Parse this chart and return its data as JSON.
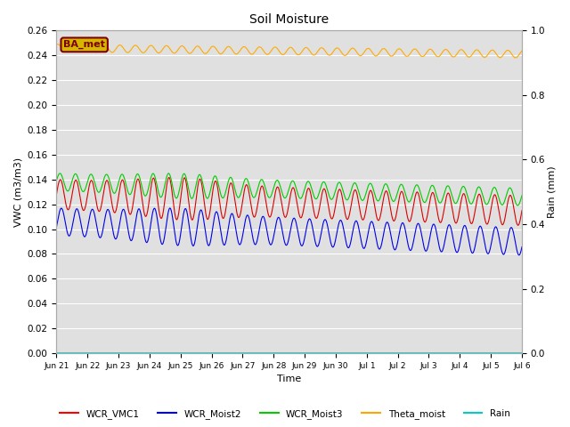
{
  "title": "Soil Moisture",
  "xlabel": "Time",
  "ylabel_left": "VWC (m3/m3)",
  "ylabel_right": "Rain (mm)",
  "ylim_left": [
    0.0,
    0.26
  ],
  "ylim_right": [
    0.0,
    1.0
  ],
  "fig_bg_color": "#ffffff",
  "plot_bg_color": "#e0e0e0",
  "x_tick_labels": [
    "Jun 21",
    "Jun 22",
    "Jun 23",
    "Jun 24",
    "Jun 25",
    "Jun 26",
    "Jun 27",
    "Jun 28",
    "Jun 29",
    "Jun 30",
    "Jul 1",
    "Jul 2",
    "Jul 3",
    "Jul 4",
    "Jul 5",
    "Jul 6"
  ],
  "annotation_text": "BA_met",
  "annotation_color": "#800000",
  "annotation_bg": "#d4b800",
  "legend_entries": [
    "WCR_VMC1",
    "WCR_Moist2",
    "WCR_Moist3",
    "Theta_moist",
    "Rain"
  ],
  "legend_colors": [
    "#ff0000",
    "#0000ff",
    "#00cc00",
    "#ffa500",
    "#00cccc"
  ],
  "line_colors": {
    "WCR_VMC1": "#dd0000",
    "WCR_Moist2": "#0000ee",
    "WCR_Moist3": "#00cc00",
    "Theta_moist": "#ffaa00",
    "Rain": "#00cccc"
  },
  "n_points": 2000,
  "duration_days": 15
}
